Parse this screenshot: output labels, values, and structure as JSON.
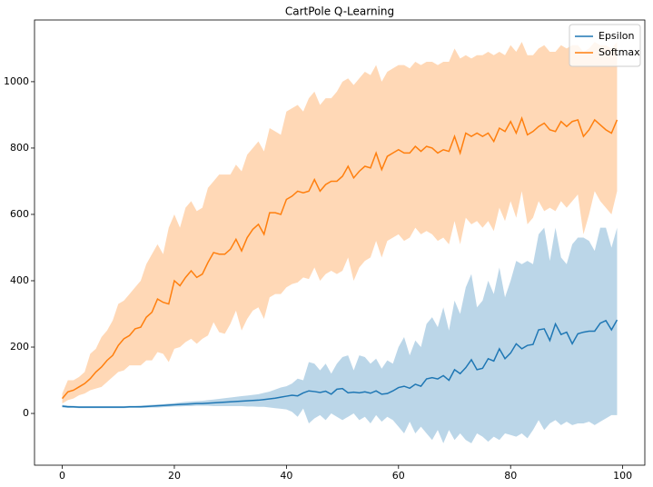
{
  "chart_data": {
    "type": "line",
    "title": "CartPole Q-Learning",
    "x": [
      0,
      1,
      2,
      3,
      4,
      5,
      6,
      7,
      8,
      9,
      10,
      11,
      12,
      13,
      14,
      15,
      16,
      17,
      18,
      19,
      20,
      21,
      22,
      23,
      24,
      25,
      26,
      27,
      28,
      29,
      30,
      31,
      32,
      33,
      34,
      35,
      36,
      37,
      38,
      39,
      40,
      41,
      42,
      43,
      44,
      45,
      46,
      47,
      48,
      49,
      50,
      51,
      52,
      53,
      54,
      55,
      56,
      57,
      58,
      59,
      60,
      61,
      62,
      63,
      64,
      65,
      66,
      67,
      68,
      69,
      70,
      71,
      72,
      73,
      74,
      75,
      76,
      77,
      78,
      79,
      80,
      81,
      82,
      83,
      84,
      85,
      86,
      87,
      88,
      89,
      90,
      91,
      92,
      93,
      94,
      95,
      96,
      97,
      98,
      99
    ],
    "xlim": [
      -4.95,
      103.95
    ],
    "xticks": [
      0,
      20,
      40,
      60,
      80,
      100
    ],
    "ylim": [
      -156,
      1186
    ],
    "yticks": [
      0,
      200,
      400,
      600,
      800,
      1000
    ],
    "grid": false,
    "legend": "upper right",
    "band_opacity": 0.3,
    "series": [
      {
        "name": "Epsilon",
        "color": "#1f77b4",
        "values": [
          22,
          20,
          20,
          19,
          19,
          19,
          19,
          19,
          19,
          19,
          19,
          19,
          20,
          20,
          20,
          21,
          22,
          23,
          24,
          25,
          26,
          27,
          28,
          29,
          30,
          30,
          31,
          32,
          33,
          34,
          35,
          36,
          37,
          38,
          39,
          40,
          42,
          44,
          46,
          49,
          52,
          55,
          53,
          62,
          68,
          66,
          63,
          67,
          58,
          73,
          75,
          62,
          64,
          62,
          65,
          61,
          68,
          58,
          60,
          68,
          78,
          82,
          76,
          88,
          82,
          104,
          108,
          104,
          114,
          100,
          132,
          120,
          138,
          162,
          132,
          136,
          165,
          158,
          195,
          165,
          182,
          210,
          195,
          205,
          208,
          252,
          255,
          220,
          270,
          238,
          245,
          210,
          240,
          245,
          248,
          248,
          272,
          280,
          252,
          282
        ],
        "upper": [
          26,
          24,
          23,
          22,
          22,
          22,
          22,
          22,
          22,
          22,
          22,
          22,
          23,
          23,
          24,
          25,
          26,
          27,
          28,
          30,
          31,
          33,
          35,
          36,
          37,
          38,
          40,
          42,
          44,
          46,
          48,
          50,
          52,
          54,
          56,
          58,
          62,
          66,
          72,
          78,
          82,
          90,
          105,
          100,
          155,
          150,
          130,
          150,
          120,
          150,
          170,
          175,
          130,
          175,
          170,
          150,
          165,
          135,
          160,
          150,
          200,
          230,
          175,
          220,
          200,
          270,
          290,
          260,
          320,
          250,
          340,
          300,
          380,
          420,
          320,
          340,
          400,
          360,
          440,
          350,
          400,
          460,
          450,
          460,
          450,
          540,
          560,
          460,
          560,
          470,
          450,
          510,
          530,
          530,
          520,
          490,
          560,
          560,
          500,
          560
        ],
        "lower": [
          18,
          17,
          17,
          16,
          16,
          16,
          16,
          16,
          16,
          16,
          16,
          16,
          17,
          17,
          17,
          17,
          18,
          18,
          19,
          20,
          21,
          21,
          22,
          22,
          23,
          23,
          23,
          22,
          22,
          22,
          22,
          22,
          22,
          21,
          21,
          20,
          20,
          18,
          16,
          14,
          12,
          5,
          -10,
          15,
          -30,
          -15,
          -5,
          -20,
          0,
          -10,
          -20,
          -10,
          0,
          -20,
          -10,
          -30,
          -5,
          -25,
          -10,
          -20,
          -40,
          -60,
          -25,
          -60,
          -40,
          -60,
          -80,
          -50,
          -90,
          -50,
          -80,
          -60,
          -80,
          -90,
          -60,
          -70,
          -85,
          -70,
          -80,
          -60,
          -65,
          -70,
          -60,
          -75,
          -50,
          -20,
          -50,
          -30,
          -20,
          -35,
          -25,
          -35,
          -30,
          -30,
          -25,
          -35,
          -25,
          -15,
          -5,
          -5
        ]
      },
      {
        "name": "Softmax",
        "color": "#ff7f0e",
        "values": [
          45,
          65,
          70,
          80,
          90,
          105,
          125,
          140,
          160,
          175,
          205,
          225,
          235,
          255,
          260,
          290,
          305,
          345,
          335,
          330,
          400,
          385,
          410,
          430,
          410,
          420,
          455,
          485,
          480,
          480,
          495,
          525,
          490,
          530,
          555,
          570,
          540,
          605,
          605,
          600,
          645,
          655,
          670,
          665,
          670,
          705,
          670,
          690,
          700,
          700,
          715,
          745,
          710,
          730,
          745,
          740,
          785,
          735,
          775,
          785,
          795,
          785,
          785,
          805,
          790,
          805,
          800,
          785,
          795,
          790,
          835,
          785,
          845,
          835,
          845,
          835,
          845,
          820,
          860,
          850,
          880,
          845,
          890,
          840,
          850,
          865,
          875,
          855,
          850,
          880,
          865,
          880,
          885,
          835,
          855,
          885,
          870,
          855,
          845,
          885
        ],
        "upper": [
          60,
          100,
          100,
          110,
          125,
          180,
          195,
          230,
          250,
          280,
          330,
          340,
          360,
          380,
          400,
          450,
          480,
          510,
          480,
          560,
          600,
          560,
          620,
          640,
          610,
          620,
          680,
          700,
          720,
          720,
          720,
          750,
          730,
          780,
          800,
          820,
          790,
          860,
          850,
          840,
          910,
          920,
          930,
          910,
          950,
          970,
          930,
          950,
          950,
          970,
          1000,
          1010,
          990,
          1010,
          1030,
          1020,
          1050,
          1000,
          1030,
          1040,
          1050,
          1050,
          1040,
          1060,
          1050,
          1060,
          1060,
          1050,
          1060,
          1060,
          1100,
          1070,
          1080,
          1070,
          1080,
          1080,
          1090,
          1080,
          1090,
          1080,
          1110,
          1090,
          1120,
          1080,
          1080,
          1100,
          1110,
          1090,
          1090,
          1110,
          1100,
          1110,
          1110,
          1090,
          1100,
          1120,
          1110,
          1110,
          1100,
          1120
        ],
        "lower": [
          30,
          40,
          45,
          55,
          60,
          70,
          75,
          80,
          95,
          110,
          125,
          130,
          145,
          145,
          145,
          160,
          160,
          185,
          180,
          155,
          195,
          200,
          215,
          225,
          210,
          225,
          235,
          275,
          245,
          240,
          270,
          310,
          250,
          285,
          310,
          320,
          285,
          350,
          360,
          360,
          380,
          390,
          395,
          410,
          405,
          440,
          400,
          420,
          430,
          420,
          430,
          470,
          400,
          440,
          460,
          470,
          520,
          470,
          520,
          530,
          540,
          520,
          530,
          560,
          540,
          550,
          540,
          520,
          530,
          510,
          580,
          510,
          590,
          570,
          580,
          560,
          580,
          550,
          620,
          580,
          640,
          590,
          670,
          570,
          590,
          640,
          610,
          620,
          610,
          640,
          620,
          640,
          660,
          540,
          600,
          670,
          640,
          620,
          600,
          670
        ]
      }
    ]
  }
}
